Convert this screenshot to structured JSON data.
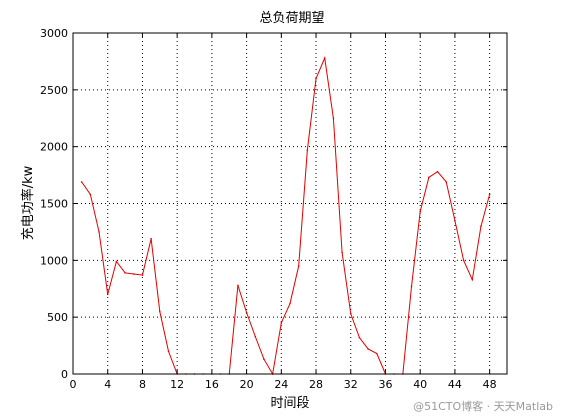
{
  "chart_data": {
    "type": "line",
    "title": "总负荷期望",
    "xlabel": "时间段",
    "ylabel": "充电功率/kw",
    "xlim": [
      0,
      50
    ],
    "ylim": [
      0,
      3000
    ],
    "xticks": [
      0,
      4,
      8,
      12,
      16,
      20,
      24,
      28,
      32,
      36,
      40,
      44,
      48
    ],
    "yticks": [
      0,
      500,
      1000,
      1500,
      2000,
      2500,
      3000
    ],
    "grid": true,
    "grid_style": "dotted",
    "series": [
      {
        "color": "#e00000",
        "x": [
          1,
          2,
          3,
          4,
          5,
          6,
          7,
          8,
          9,
          10,
          11,
          12,
          13,
          14,
          15,
          16,
          17,
          18,
          19,
          20,
          21,
          22,
          23,
          24,
          25,
          26,
          27,
          28,
          29,
          30,
          31,
          32,
          33,
          34,
          35,
          36,
          37,
          38,
          39,
          40,
          41,
          42,
          43,
          44,
          45,
          46,
          47,
          48
        ],
        "y": [
          1690,
          1580,
          1250,
          700,
          990,
          890,
          880,
          870,
          1190,
          550,
          200,
          0,
          0,
          0,
          0,
          0,
          0,
          0,
          780,
          540,
          330,
          130,
          0,
          450,
          620,
          950,
          1970,
          2600,
          2780,
          2250,
          1070,
          530,
          320,
          220,
          180,
          0,
          0,
          0,
          770,
          1430,
          1730,
          1780,
          1690,
          1350,
          1000,
          830,
          1300,
          1580
        ]
      }
    ]
  },
  "watermark": "@51CTO博客 · 天天Matlab"
}
